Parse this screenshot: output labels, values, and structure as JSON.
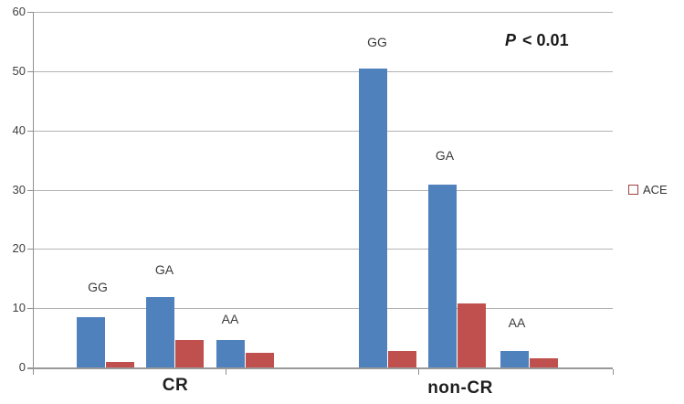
{
  "figure": {
    "y_tick_labels": [
      "0",
      "10",
      "20",
      "30",
      "40",
      "50",
      "60"
    ],
    "group_labels": [
      {
        "label": "CR"
      },
      {
        "label": "non-CR"
      }
    ],
    "bar_labels": [
      "GG",
      "GA",
      "AA",
      "GG",
      "GA",
      "AA"
    ],
    "annotation": {
      "italic": "P",
      "rest": "< 0.01"
    },
    "legend": {
      "label": "ACE",
      "color": "#C0504D"
    },
    "colors": {
      "blue": "#4F81BD",
      "red": "#C0504D",
      "gridline": "#b3b3b3",
      "axis": "#8f8f8f"
    }
  },
  "chart_data": {
    "type": "bar",
    "title": "",
    "xlabel": "",
    "ylabel": "",
    "ylim": [
      0,
      60
    ],
    "y_ticks": [
      0,
      10,
      20,
      30,
      40,
      50,
      60
    ],
    "grid": true,
    "legend_position": "right-middle",
    "annotation": "P < 0.01",
    "groups": [
      "CR",
      "non-CR"
    ],
    "categories": [
      "CR GG",
      "CR GA",
      "CR AA",
      "non-CR GG",
      "non-CR GA",
      "non-CR AA"
    ],
    "series": [
      {
        "name": "",
        "color": "#4F81BD",
        "values": [
          8.5,
          11.8,
          4.7,
          50.5,
          30.9,
          2.7
        ]
      },
      {
        "name": "ACE",
        "color": "#C0504D",
        "values": [
          0.9,
          4.6,
          2.5,
          2.7,
          10.8,
          1.5
        ]
      }
    ]
  }
}
